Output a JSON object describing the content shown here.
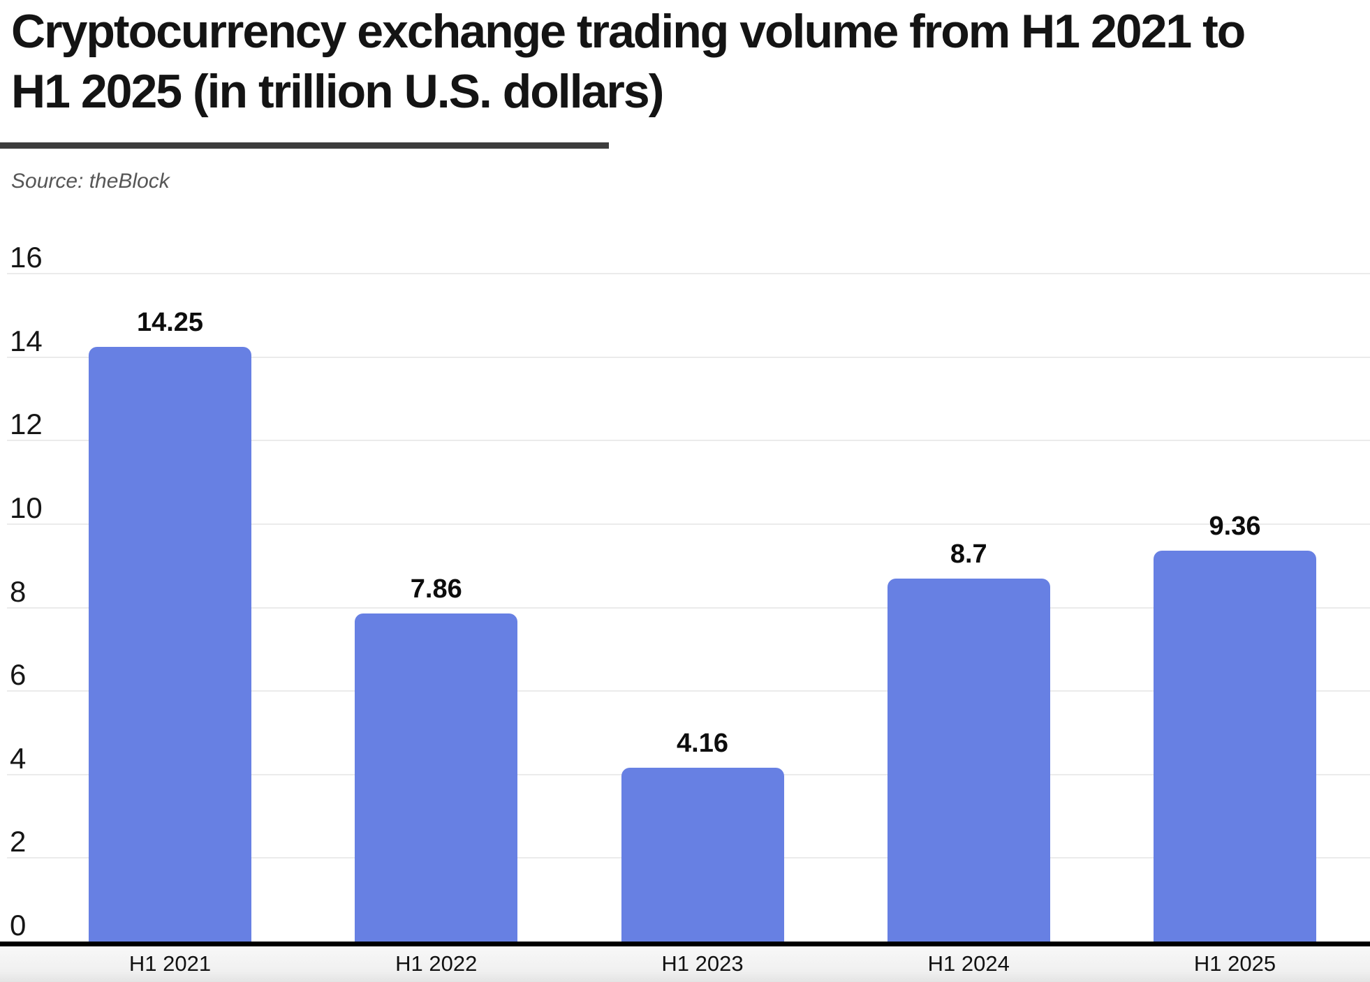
{
  "header": {
    "title_lines": [
      "Cryptocurrency exchange trading volume from H1 2021 to",
      "H1 2025 (in trillion U.S. dollars)"
    ],
    "source": "Source: theBlock"
  },
  "chart_data": {
    "type": "bar",
    "title": "Cryptocurrency exchange trading volume from H1 2021 to H1 2025 (in trillion U.S. dollars)",
    "source": "Source: theBlock",
    "categories": [
      "H1 2021",
      "H1 2022",
      "H1 2023",
      "H1 2024",
      "H1 2025"
    ],
    "values": [
      14.25,
      7.86,
      4.16,
      8.7,
      9.36
    ],
    "value_labels": [
      "14.25",
      "7.86",
      "4.16",
      "8.7",
      "9.36"
    ],
    "xlabel": "",
    "ylabel": "",
    "ylim": [
      0,
      16
    ],
    "yticks": [
      0,
      2,
      4,
      6,
      8,
      10,
      12,
      14,
      16
    ],
    "grid": true,
    "legend": "none",
    "bar_color": "#6780E3"
  },
  "colors": {
    "bar": "#6780E3",
    "gridline": "#EBEBEB",
    "axis_line": "#000000",
    "title_underline": "#3D3D3D",
    "title_text": "#141414",
    "source_text": "#565656",
    "value_label": "#0D0D0D",
    "footer_top": "#F8F8F8",
    "footer_bottom": "#E4E4E4"
  }
}
